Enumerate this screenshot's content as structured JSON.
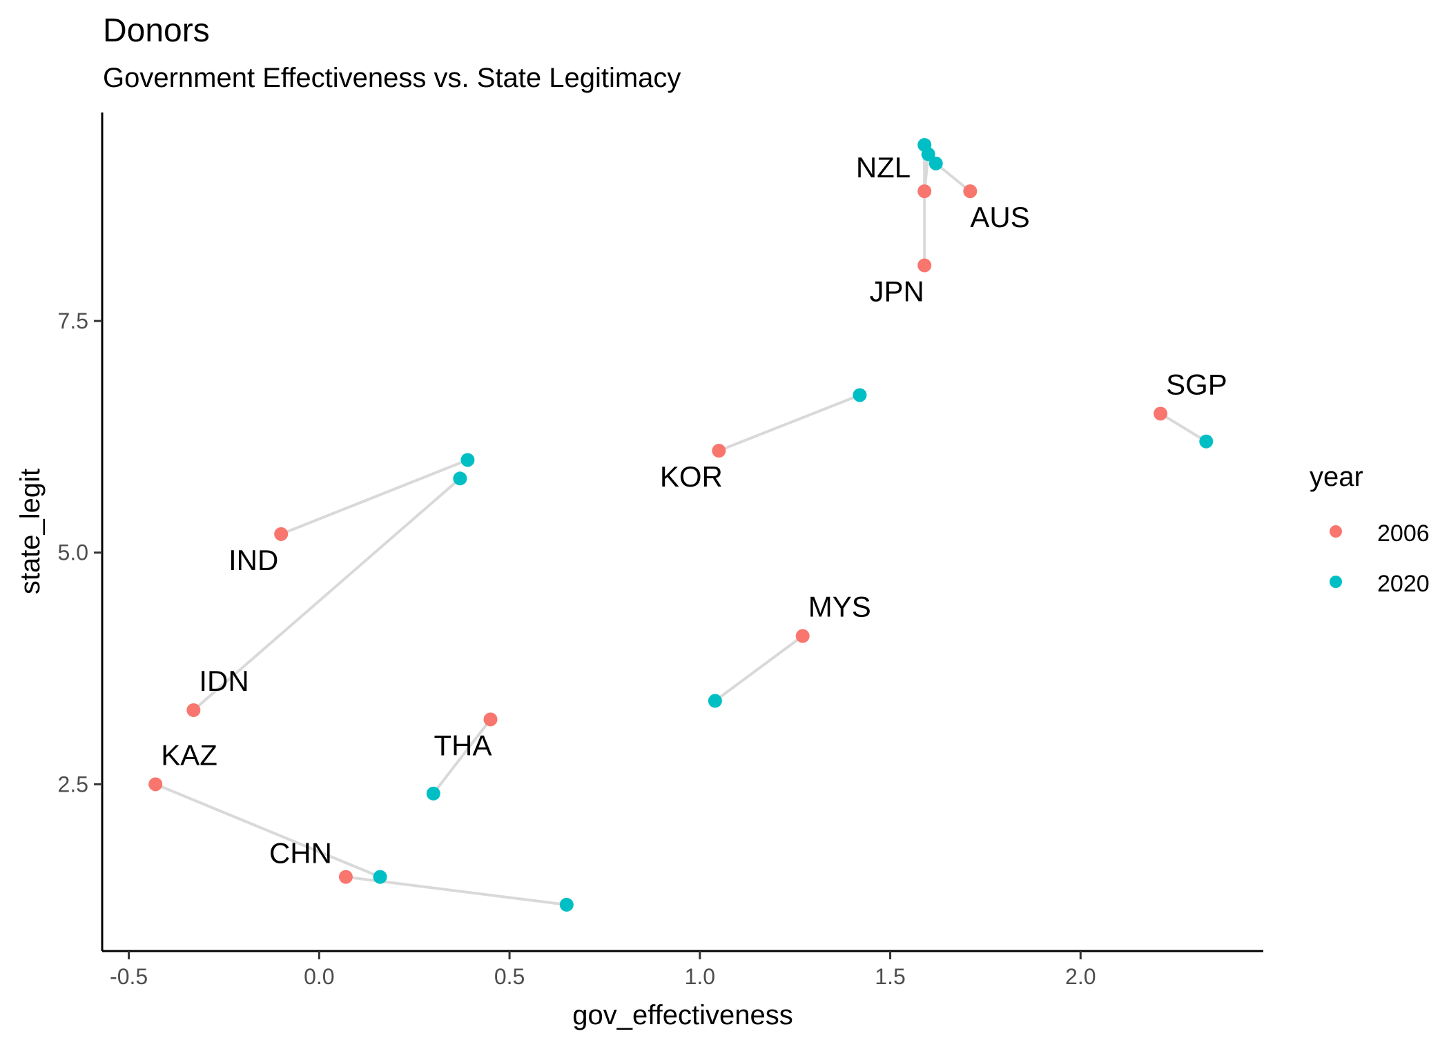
{
  "chart_data": {
    "type": "scatter",
    "title": "Donors",
    "subtitle": "Government Effectiveness vs. State Legitimacy",
    "xlabel": "gov_effectiveness",
    "ylabel": "state_legit",
    "xlim": [
      -0.57,
      2.48
    ],
    "ylim": [
      0.7,
      9.75
    ],
    "x_ticks": [
      -0.5,
      0.0,
      0.5,
      1.0,
      1.5,
      2.0
    ],
    "x_tick_labels": [
      "-0.5",
      "0.0",
      "0.5",
      "1.0",
      "1.5",
      "2.0"
    ],
    "y_ticks": [
      2.5,
      5.0,
      7.5
    ],
    "y_tick_labels": [
      "2.5",
      "5.0",
      "7.5"
    ],
    "grid": false,
    "legend": {
      "title": "year",
      "placement": "right",
      "items": [
        {
          "label": "2006",
          "color": "#F8766D"
        },
        {
          "label": "2020",
          "color": "#00BFC4"
        }
      ]
    },
    "connector_color": "#D9D9D9",
    "series": [
      {
        "name": "2006",
        "color": "#F8766D",
        "points": [
          {
            "x": 1.71,
            "y": 8.9
          },
          {
            "x": 1.59,
            "y": 8.1
          },
          {
            "x": 1.59,
            "y": 8.9
          },
          {
            "x": 2.21,
            "y": 6.5
          },
          {
            "x": 1.05,
            "y": 6.1
          },
          {
            "x": 1.27,
            "y": 4.1
          },
          {
            "x": -0.1,
            "y": 5.2
          },
          {
            "x": -0.33,
            "y": 3.3
          },
          {
            "x": -0.43,
            "y": 2.5
          },
          {
            "x": 0.07,
            "y": 1.5
          },
          {
            "x": 0.45,
            "y": 3.2
          }
        ]
      },
      {
        "name": "2020",
        "color": "#00BFC4",
        "points": [
          {
            "x": 1.62,
            "y": 9.2
          },
          {
            "x": 1.59,
            "y": 9.4
          },
          {
            "x": 1.6,
            "y": 9.3
          },
          {
            "x": 2.33,
            "y": 6.2
          },
          {
            "x": 1.42,
            "y": 6.7
          },
          {
            "x": 1.04,
            "y": 3.4
          },
          {
            "x": 0.39,
            "y": 6.0
          },
          {
            "x": 0.37,
            "y": 5.8
          },
          {
            "x": 0.16,
            "y": 1.5
          },
          {
            "x": 0.65,
            "y": 1.2
          },
          {
            "x": 0.3,
            "y": 2.4
          }
        ]
      }
    ],
    "connectors": [
      {
        "from": [
          1.71,
          8.9
        ],
        "to": [
          1.62,
          9.2
        ]
      },
      {
        "from": [
          1.59,
          8.1
        ],
        "to": [
          1.59,
          9.4
        ]
      },
      {
        "from": [
          1.59,
          8.9
        ],
        "to": [
          1.6,
          9.3
        ]
      },
      {
        "from": [
          2.21,
          6.5
        ],
        "to": [
          2.33,
          6.2
        ]
      },
      {
        "from": [
          1.05,
          6.1
        ],
        "to": [
          1.42,
          6.7
        ]
      },
      {
        "from": [
          1.27,
          4.1
        ],
        "to": [
          1.04,
          3.4
        ]
      },
      {
        "from": [
          -0.1,
          5.2
        ],
        "to": [
          0.39,
          6.0
        ]
      },
      {
        "from": [
          -0.33,
          3.3
        ],
        "to": [
          0.37,
          5.8
        ]
      },
      {
        "from": [
          -0.43,
          2.5
        ],
        "to": [
          0.16,
          1.5
        ]
      },
      {
        "from": [
          0.07,
          1.5
        ],
        "to": [
          0.65,
          1.2
        ]
      },
      {
        "from": [
          0.45,
          3.2
        ],
        "to": [
          0.3,
          2.4
        ]
      }
    ],
    "point_labels": [
      {
        "text": "AUS",
        "x": 1.71,
        "y": 8.9,
        "pos": "below-right"
      },
      {
        "text": "JPN",
        "x": 1.59,
        "y": 8.1,
        "pos": "below-left"
      },
      {
        "text": "NZL",
        "x": 1.59,
        "y": 8.9,
        "pos": "above-left"
      },
      {
        "text": "SGP",
        "x": 2.21,
        "y": 6.5,
        "pos": "above-right"
      },
      {
        "text": "KOR",
        "x": 1.05,
        "y": 6.1,
        "pos": "below-left"
      },
      {
        "text": "MYS",
        "x": 1.27,
        "y": 4.1,
        "pos": "above-right"
      },
      {
        "text": "IND",
        "x": -0.1,
        "y": 5.2,
        "pos": "below-left"
      },
      {
        "text": "IDN",
        "x": -0.33,
        "y": 3.3,
        "pos": "above-right"
      },
      {
        "text": "KAZ",
        "x": -0.43,
        "y": 2.5,
        "pos": "above-right"
      },
      {
        "text": "CHN",
        "x": 0.07,
        "y": 1.5,
        "pos": "above-left"
      },
      {
        "text": "THA",
        "x": 0.45,
        "y": 3.2,
        "pos": "below-left"
      }
    ]
  }
}
